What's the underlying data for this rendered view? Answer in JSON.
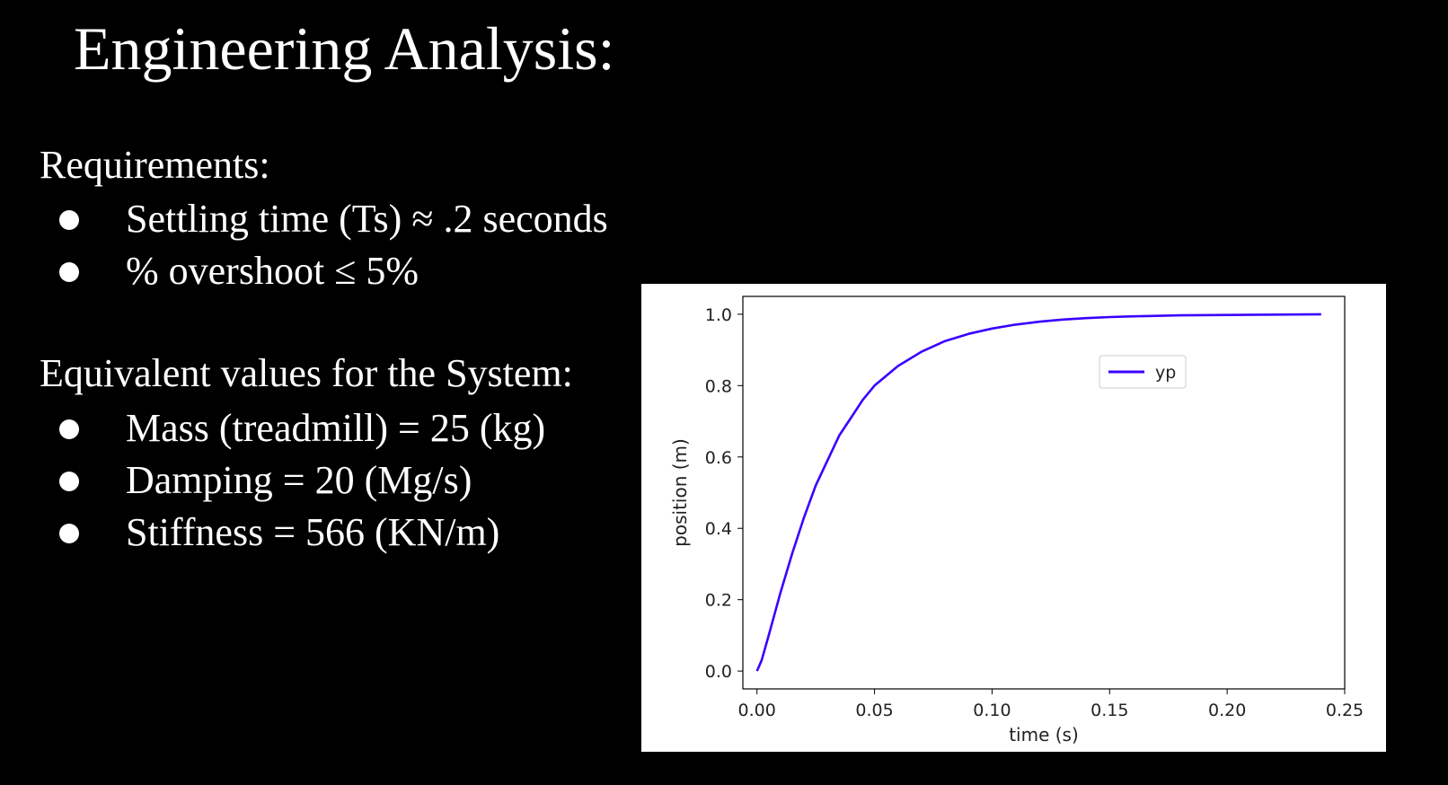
{
  "slide": {
    "title": "Engineering Analysis:"
  },
  "requirements": {
    "heading": "Requirements:",
    "items": [
      "Settling time (Ts) ≈ .2 seconds",
      "% overshoot ≤ 5%"
    ]
  },
  "system_values": {
    "heading": "Equivalent values for the System:",
    "items": [
      "Mass (treadmill) = 25 (kg)",
      "Damping = 20 (Mg/s)",
      "Stiffness = 566 (KN/m)"
    ]
  },
  "chart_data": {
    "type": "line",
    "title": "",
    "xlabel": "time (s)",
    "ylabel": "position (m)",
    "xlim": [
      -0.006,
      0.25
    ],
    "ylim": [
      -0.05,
      1.05
    ],
    "xticks": [
      0.0,
      0.05,
      0.1,
      0.15,
      0.2,
      0.25
    ],
    "xtick_labels": [
      "0.00",
      "0.05",
      "0.10",
      "0.15",
      "0.20",
      "0.25"
    ],
    "yticks": [
      0.0,
      0.2,
      0.4,
      0.6,
      0.8,
      1.0
    ],
    "ytick_labels": [
      "0.0",
      "0.2",
      "0.4",
      "0.6",
      "0.8",
      "1.0"
    ],
    "grid": false,
    "legend_position": "upper-right",
    "series": [
      {
        "name": "yp",
        "color": "#3a00ff",
        "x": [
          0.0,
          0.002,
          0.005,
          0.01,
          0.015,
          0.02,
          0.025,
          0.03,
          0.035,
          0.04,
          0.045,
          0.05,
          0.06,
          0.07,
          0.08,
          0.09,
          0.1,
          0.11,
          0.12,
          0.13,
          0.14,
          0.15,
          0.16,
          0.18,
          0.2,
          0.22,
          0.24
        ],
        "y": [
          0.0,
          0.03,
          0.1,
          0.22,
          0.33,
          0.43,
          0.52,
          0.59,
          0.66,
          0.71,
          0.76,
          0.8,
          0.855,
          0.895,
          0.925,
          0.945,
          0.96,
          0.971,
          0.979,
          0.985,
          0.989,
          0.992,
          0.994,
          0.997,
          0.998,
          0.999,
          1.0
        ]
      }
    ]
  }
}
